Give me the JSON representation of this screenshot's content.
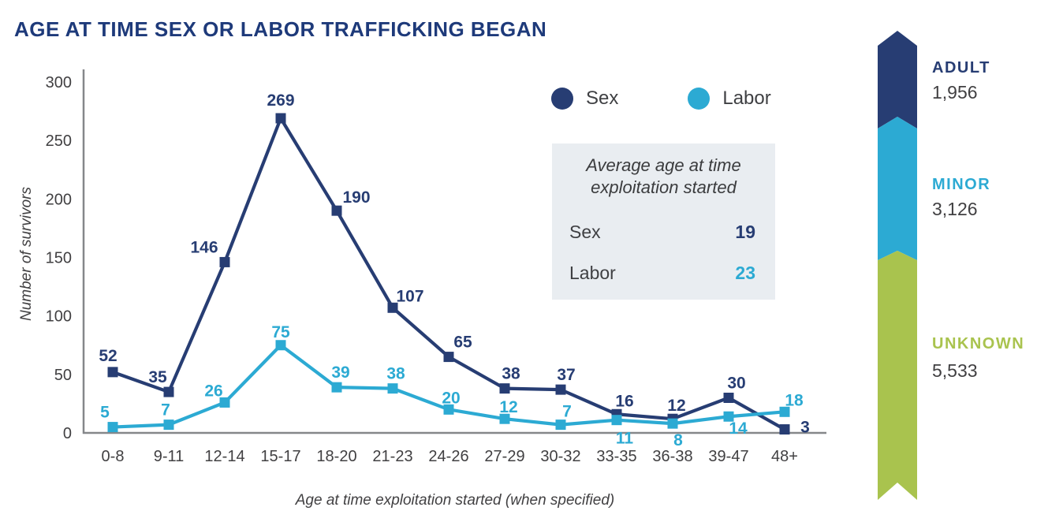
{
  "title": "AGE AT TIME SEX OR LABOR TRAFFICKING BEGAN",
  "colors": {
    "navy": "#273d73",
    "cyan": "#2caad3",
    "green": "#a9c34e",
    "axis_gray": "#85878a",
    "text_dark": "#414042",
    "title_navy": "#1e3a7a",
    "box_bg": "#e9edf1"
  },
  "chart_data": {
    "type": "line",
    "title": "AGE AT TIME SEX OR LABOR TRAFFICKING BEGAN",
    "categories": [
      "0-8",
      "9-11",
      "12-14",
      "15-17",
      "18-20",
      "21-23",
      "24-26",
      "27-29",
      "30-32",
      "33-35",
      "36-38",
      "39-47",
      "48+"
    ],
    "series": [
      {
        "name": "Sex",
        "color": "#273d73",
        "values": [
          52,
          35,
          146,
          269,
          190,
          107,
          65,
          38,
          37,
          16,
          12,
          30,
          3
        ],
        "label_offsets": [
          [
            -6,
            -14
          ],
          [
            -14,
            -12
          ],
          [
            -26,
            -12
          ],
          [
            0,
            -16
          ],
          [
            25,
            -10
          ],
          [
            22,
            -8
          ],
          [
            18,
            -12
          ],
          [
            8,
            -12
          ],
          [
            7,
            -12
          ],
          [
            10,
            -10
          ],
          [
            5,
            -10
          ],
          [
            10,
            -12
          ],
          [
            26,
            4
          ]
        ]
      },
      {
        "name": "Labor",
        "color": "#2caad3",
        "values": [
          5,
          7,
          26,
          75,
          39,
          38,
          20,
          12,
          7,
          11,
          8,
          14,
          18
        ],
        "label_offsets": [
          [
            -10,
            -12
          ],
          [
            -4,
            -12
          ],
          [
            -14,
            -8
          ],
          [
            0,
            -10
          ],
          [
            5,
            -12
          ],
          [
            4,
            -12
          ],
          [
            3,
            -8
          ],
          [
            5,
            -8
          ],
          [
            8,
            -10
          ],
          [
            10,
            30
          ],
          [
            7,
            28
          ],
          [
            12,
            22
          ],
          [
            12,
            -8
          ]
        ]
      }
    ],
    "xlabel": "Age at time exploitation started (when specified)",
    "ylabel": "Number of survivors",
    "ylim": [
      0,
      300
    ],
    "yticks": [
      0,
      50,
      100,
      150,
      200,
      250,
      300
    ],
    "grid": false,
    "legend_position": "top-right"
  },
  "legend": {
    "items": [
      {
        "label": "Sex",
        "color": "#273d73"
      },
      {
        "label": "Labor",
        "color": "#2caad3"
      }
    ]
  },
  "average_box": {
    "title_line1": "Average age at time",
    "title_line2": "exploitation started",
    "rows": [
      {
        "label": "Sex",
        "value": "19",
        "color": "#273d73"
      },
      {
        "label": "Labor",
        "value": "23",
        "color": "#2caad3"
      }
    ]
  },
  "totals_ribbon": {
    "segments": [
      {
        "label": "ADULT",
        "value": "1,956",
        "color": "#273d73"
      },
      {
        "label": "MINOR",
        "value": "3,126",
        "color": "#2caad3"
      },
      {
        "label": "UNKNOWN",
        "value": "5,533",
        "color": "#a9c34e"
      }
    ]
  }
}
